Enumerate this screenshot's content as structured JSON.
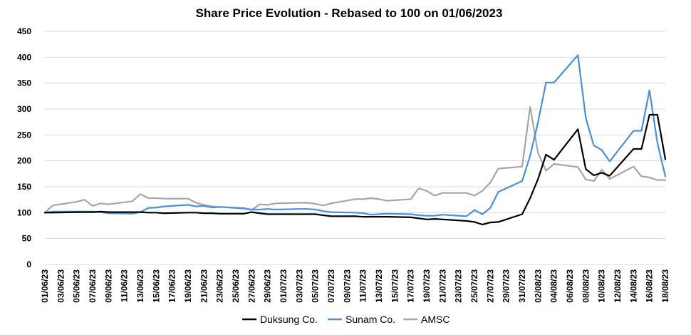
{
  "chart_data": {
    "type": "line",
    "title": "Share Price Evolution - Rebased to 100 on 01/06/2023",
    "xlabel": "",
    "ylabel": "",
    "ylim": [
      0,
      450
    ],
    "yticks": [
      0,
      50,
      100,
      150,
      200,
      250,
      300,
      350,
      400,
      450
    ],
    "grid": true,
    "legend_position": "bottom",
    "x_start": "01/06/2023",
    "x_end": "18/08/2023",
    "x_tick_labels": [
      "01/06/23",
      "03/06/23",
      "05/06/23",
      "07/06/23",
      "09/06/23",
      "11/06/23",
      "13/06/23",
      "15/06/23",
      "17/06/23",
      "19/06/23",
      "21/06/23",
      "23/06/23",
      "25/06/23",
      "27/06/23",
      "29/06/23",
      "01/07/23",
      "03/07/23",
      "05/07/23",
      "07/07/23",
      "09/07/23",
      "11/07/23",
      "13/07/23",
      "15/07/23",
      "17/07/23",
      "19/07/23",
      "21/07/23",
      "23/07/23",
      "25/07/23",
      "27/07/23",
      "29/07/23",
      "31/07/23",
      "02/08/23",
      "04/08/23",
      "06/08/23",
      "08/08/23",
      "10/08/23",
      "12/08/23",
      "14/08/23",
      "16/08/23",
      "18/08/23"
    ],
    "series": [
      {
        "name": "Duksung Co.",
        "color": "#000000",
        "points": [
          [
            "01/06/23",
            100
          ],
          [
            "02/06/23",
            100
          ],
          [
            "05/06/23",
            101
          ],
          [
            "06/06/23",
            101
          ],
          [
            "07/06/23",
            101
          ],
          [
            "08/06/23",
            102
          ],
          [
            "09/06/23",
            101
          ],
          [
            "12/06/23",
            101
          ],
          [
            "13/06/23",
            101
          ],
          [
            "14/06/23",
            100
          ],
          [
            "15/06/23",
            100
          ],
          [
            "16/06/23",
            99
          ],
          [
            "19/06/23",
            100
          ],
          [
            "20/06/23",
            100
          ],
          [
            "21/06/23",
            99
          ],
          [
            "22/06/23",
            99
          ],
          [
            "23/06/23",
            98
          ],
          [
            "26/06/23",
            98
          ],
          [
            "27/06/23",
            101
          ],
          [
            "28/06/23",
            99
          ],
          [
            "29/06/23",
            97
          ],
          [
            "30/06/23",
            97
          ],
          [
            "03/07/23",
            97
          ],
          [
            "04/07/23",
            97
          ],
          [
            "05/07/23",
            97
          ],
          [
            "06/07/23",
            95
          ],
          [
            "07/07/23",
            93
          ],
          [
            "10/07/23",
            93
          ],
          [
            "11/07/23",
            92
          ],
          [
            "12/07/23",
            92
          ],
          [
            "13/07/23",
            92
          ],
          [
            "14/07/23",
            92
          ],
          [
            "17/07/23",
            91
          ],
          [
            "18/07/23",
            89
          ],
          [
            "19/07/23",
            87
          ],
          [
            "20/07/23",
            88
          ],
          [
            "21/07/23",
            87
          ],
          [
            "24/07/23",
            84
          ],
          [
            "25/07/23",
            82
          ],
          [
            "26/07/23",
            77
          ],
          [
            "27/07/23",
            81
          ],
          [
            "28/07/23",
            82
          ],
          [
            "31/07/23",
            97
          ],
          [
            "01/08/23",
            128
          ],
          [
            "02/08/23",
            165
          ],
          [
            "03/08/23",
            212
          ],
          [
            "04/08/23",
            202
          ],
          [
            "07/08/23",
            261
          ],
          [
            "08/08/23",
            184
          ],
          [
            "09/08/23",
            172
          ],
          [
            "10/08/23",
            177
          ],
          [
            "11/08/23",
            171
          ],
          [
            "14/08/23",
            223
          ],
          [
            "15/08/23",
            223
          ],
          [
            "16/08/23",
            289
          ],
          [
            "17/08/23",
            289
          ],
          [
            "18/08/23",
            203
          ]
        ]
      },
      {
        "name": "Sunam Co.",
        "color": "#4a90d9",
        "points": [
          [
            "01/06/23",
            100
          ],
          [
            "02/06/23",
            102
          ],
          [
            "05/06/23",
            102
          ],
          [
            "06/06/23",
            102
          ],
          [
            "07/06/23",
            102
          ],
          [
            "08/06/23",
            101
          ],
          [
            "09/06/23",
            99
          ],
          [
            "12/06/23",
            98
          ],
          [
            "13/06/23",
            101
          ],
          [
            "14/06/23",
            109
          ],
          [
            "15/06/23",
            110
          ],
          [
            "16/06/23",
            112
          ],
          [
            "19/06/23",
            115
          ],
          [
            "20/06/23",
            112
          ],
          [
            "21/06/23",
            113
          ],
          [
            "22/06/23",
            110
          ],
          [
            "23/06/23",
            111
          ],
          [
            "26/06/23",
            108
          ],
          [
            "27/06/23",
            106
          ],
          [
            "28/06/23",
            106
          ],
          [
            "29/06/23",
            107
          ],
          [
            "30/06/23",
            106
          ],
          [
            "03/07/23",
            107
          ],
          [
            "04/07/23",
            107
          ],
          [
            "05/07/23",
            106
          ],
          [
            "06/07/23",
            103
          ],
          [
            "07/07/23",
            101
          ],
          [
            "10/07/23",
            100
          ],
          [
            "11/07/23",
            99
          ],
          [
            "12/07/23",
            96
          ],
          [
            "13/07/23",
            97
          ],
          [
            "14/07/23",
            98
          ],
          [
            "17/07/23",
            97
          ],
          [
            "18/07/23",
            95
          ],
          [
            "19/07/23",
            94
          ],
          [
            "20/07/23",
            94
          ],
          [
            "21/07/23",
            96
          ],
          [
            "24/07/23",
            93
          ],
          [
            "25/07/23",
            105
          ],
          [
            "26/07/23",
            97
          ],
          [
            "27/07/23",
            109
          ],
          [
            "28/07/23",
            140
          ],
          [
            "31/07/23",
            161
          ],
          [
            "01/08/23",
            210
          ],
          [
            "02/08/23",
            275
          ],
          [
            "03/08/23",
            351
          ],
          [
            "04/08/23",
            351
          ],
          [
            "07/08/23",
            404
          ],
          [
            "08/08/23",
            283
          ],
          [
            "09/08/23",
            230
          ],
          [
            "10/08/23",
            221
          ],
          [
            "11/08/23",
            199
          ],
          [
            "14/08/23",
            258
          ],
          [
            "15/08/23",
            258
          ],
          [
            "16/08/23",
            336
          ],
          [
            "17/08/23",
            235
          ],
          [
            "18/08/23",
            170
          ]
        ]
      },
      {
        "name": "AMSC",
        "color": "#a6a6a6",
        "points": [
          [
            "01/06/23",
            100
          ],
          [
            "02/06/23",
            114
          ],
          [
            "05/06/23",
            121
          ],
          [
            "06/06/23",
            125
          ],
          [
            "07/06/23",
            113
          ],
          [
            "08/06/23",
            118
          ],
          [
            "09/06/23",
            116
          ],
          [
            "12/06/23",
            122
          ],
          [
            "13/06/23",
            136
          ],
          [
            "14/06/23",
            128
          ],
          [
            "15/06/23",
            128
          ],
          [
            "16/06/23",
            127
          ],
          [
            "19/06/23",
            127
          ],
          [
            "20/06/23",
            119
          ],
          [
            "21/06/23",
            115
          ],
          [
            "22/06/23",
            112
          ],
          [
            "23/06/23",
            111
          ],
          [
            "26/06/23",
            109
          ],
          [
            "27/06/23",
            105
          ],
          [
            "28/06/23",
            116
          ],
          [
            "29/06/23",
            115
          ],
          [
            "30/06/23",
            118
          ],
          [
            "03/07/23",
            119
          ],
          [
            "04/07/23",
            119
          ],
          [
            "05/07/23",
            117
          ],
          [
            "06/07/23",
            114
          ],
          [
            "07/07/23",
            118
          ],
          [
            "10/07/23",
            126
          ],
          [
            "11/07/23",
            126
          ],
          [
            "12/07/23",
            128
          ],
          [
            "13/07/23",
            126
          ],
          [
            "14/07/23",
            123
          ],
          [
            "17/07/23",
            126
          ],
          [
            "18/07/23",
            147
          ],
          [
            "19/07/23",
            142
          ],
          [
            "20/07/23",
            133
          ],
          [
            "21/07/23",
            138
          ],
          [
            "24/07/23",
            138
          ],
          [
            "25/07/23",
            133
          ],
          [
            "26/07/23",
            142
          ],
          [
            "27/07/23",
            158
          ],
          [
            "28/07/23",
            185
          ],
          [
            "31/07/23",
            189
          ],
          [
            "01/08/23",
            304
          ],
          [
            "02/08/23",
            215
          ],
          [
            "03/08/23",
            181
          ],
          [
            "04/08/23",
            194
          ],
          [
            "07/08/23",
            188
          ],
          [
            "08/08/23",
            164
          ],
          [
            "09/08/23",
            161
          ],
          [
            "10/08/23",
            183
          ],
          [
            "11/08/23",
            165
          ],
          [
            "14/08/23",
            189
          ],
          [
            "15/08/23",
            170
          ],
          [
            "16/08/23",
            168
          ],
          [
            "17/08/23",
            163
          ],
          [
            "18/08/23",
            163
          ]
        ]
      }
    ]
  }
}
